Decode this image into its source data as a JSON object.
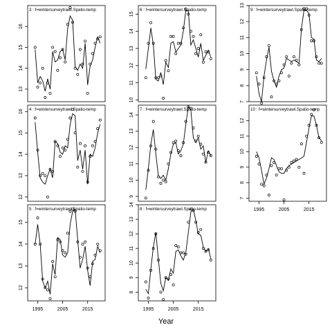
{
  "xlabel": "Year",
  "chart_data": [
    {
      "type": "line",
      "strip": "3 : f=wintersurveytrawl.Spatio-temp",
      "xlim": [
        1991,
        2022
      ],
      "ylim": [
        12.4,
        17.0
      ],
      "yticks": [
        13,
        14,
        15,
        16
      ],
      "xticks": [],
      "observed": {
        "x": [
          1994,
          1995,
          1996,
          1997,
          1998,
          1999,
          2000,
          2001,
          2002,
          2003,
          2004,
          2005,
          2006,
          2007,
          2008,
          2009,
          2010,
          2011,
          2012,
          2013,
          2014,
          2015,
          2016,
          2017,
          2018,
          2019,
          2020
        ],
        "y": [
          15.0,
          13.1,
          13.3,
          14.0,
          12.6,
          13.3,
          12.8,
          15.0,
          14.8,
          13.9,
          14.5,
          14.9,
          14.3,
          16.1,
          16.9,
          16.2,
          14.0,
          13.7,
          14.9,
          14.2,
          15.3,
          12.8,
          14.2,
          14.7,
          15.2,
          15.4,
          15.5
        ]
      },
      "fitted": {
        "x": [
          1994,
          1995,
          1996,
          1997,
          1998,
          1999,
          2000,
          2001,
          2002,
          2003,
          2004,
          2005,
          2006,
          2007,
          2008,
          2009,
          2010,
          2011,
          2012,
          2013,
          2014,
          2015,
          2016,
          2017,
          2018,
          2019,
          2020
        ],
        "y": [
          14.9,
          13.3,
          13.6,
          13.4,
          12.9,
          13.5,
          13.0,
          14.8,
          14.3,
          14.4,
          14.8,
          14.9,
          14.4,
          15.9,
          16.5,
          16.3,
          14.1,
          13.9,
          14.2,
          14.0,
          15.2,
          13.2,
          14.1,
          14.4,
          15.0,
          15.5,
          15.2
        ]
      }
    },
    {
      "type": "line",
      "strip": "4 : f=wintersurveytrawl.Spatio-temp",
      "xlim": [
        1991,
        2022
      ],
      "ylim": [
        11.8,
        16.3
      ],
      "yticks": [
        12,
        13,
        14,
        15,
        16
      ],
      "xticks": [],
      "observed": {
        "x": [
          1994,
          1995,
          1996,
          1997,
          1998,
          1999,
          2000,
          2001,
          2002,
          2003,
          2004,
          2005,
          2006,
          2007,
          2008,
          2009,
          2010,
          2011,
          2012,
          2013,
          2014,
          2015,
          2016,
          2017,
          2018,
          2019,
          2020
        ],
        "y": [
          15.7,
          14.2,
          13.0,
          13.1,
          13.0,
          12.0,
          13.3,
          13.2,
          14.6,
          14.4,
          13.9,
          14.3,
          14.2,
          14.7,
          15.7,
          16.1,
          15.0,
          13.4,
          14.5,
          13.2,
          14.4,
          12.7,
          13.9,
          14.4,
          14.6,
          15.2,
          15.6
        ]
      },
      "fitted": {
        "x": [
          1994,
          1995,
          1996,
          1997,
          1998,
          1999,
          2000,
          2001,
          2002,
          2003,
          2004,
          2005,
          2006,
          2007,
          2008,
          2009,
          2010,
          2011,
          2012,
          2013,
          2014,
          2015,
          2016,
          2017,
          2018,
          2019,
          2020
        ],
        "y": [
          15.5,
          14.1,
          12.9,
          12.7,
          12.6,
          13.0,
          13.3,
          12.9,
          14.6,
          14.5,
          14.1,
          14.0,
          14.4,
          14.3,
          15.4,
          15.9,
          15.8,
          13.7,
          14.2,
          13.3,
          14.2,
          12.6,
          14.0,
          13.9,
          14.3,
          15.0,
          15.4
        ]
      }
    },
    {
      "type": "line",
      "strip": "5 : f=wintersurveytrawl.Spatio-temp",
      "xlim": [
        1991,
        2022
      ],
      "ylim": [
        11.4,
        15.8
      ],
      "yticks": [
        12,
        13,
        14,
        15
      ],
      "xticks": [
        1995,
        2005,
        2015
      ],
      "observed": {
        "x": [
          1994,
          1995,
          1996,
          1997,
          1998,
          1999,
          2000,
          2001,
          2002,
          2003,
          2004,
          2005,
          2006,
          2007,
          2008,
          2009,
          2010,
          2011,
          2012,
          2013,
          2014,
          2015,
          2016,
          2017,
          2018,
          2019,
          2020
        ],
        "y": [
          14.0,
          15.2,
          14.0,
          12.4,
          12.0,
          11.9,
          11.5,
          13.2,
          12.5,
          14.2,
          14.1,
          13.7,
          13.6,
          14.5,
          15.5,
          15.6,
          15.5,
          14.1,
          13.4,
          14.0,
          14.1,
          12.9,
          12.5,
          13.1,
          13.5,
          14.0,
          13.7
        ]
      },
      "fitted": {
        "x": [
          1994,
          1995,
          1996,
          1997,
          1998,
          1999,
          2000,
          2001,
          2002,
          2003,
          2004,
          2005,
          2006,
          2007,
          2008,
          2009,
          2010,
          2011,
          2012,
          2013,
          2014,
          2015,
          2016,
          2017,
          2018,
          2019,
          2020
        ],
        "y": [
          14.0,
          14.9,
          14.0,
          12.3,
          12.0,
          12.3,
          11.7,
          13.1,
          12.6,
          14.3,
          14.2,
          13.5,
          13.4,
          13.6,
          14.9,
          15.5,
          15.6,
          14.2,
          12.9,
          13.3,
          13.9,
          12.8,
          12.1,
          13.2,
          13.3,
          13.9,
          13.6
        ]
      }
    },
    {
      "type": "line",
      "strip": "6 : f=wintersurveytrawl.Spatio-temp",
      "xlim": [
        1991,
        2022
      ],
      "ylim": [
        9.9,
        15.5
      ],
      "yticks": [
        10,
        11,
        12,
        13,
        14,
        15
      ],
      "xticks": [],
      "observed": {
        "x": [
          1994,
          1995,
          1996,
          1997,
          1998,
          1999,
          2000,
          2001,
          2002,
          2003,
          2004,
          2005,
          2006,
          2007,
          2008,
          2009,
          2010,
          2011,
          2012,
          2013,
          2014,
          2015,
          2016,
          2017,
          2018,
          2019,
          2020
        ],
        "y": [
          11.3,
          13.3,
          14.5,
          13.3,
          11.3,
          11.3,
          11.4,
          10.1,
          12.3,
          11.7,
          13.7,
          13.7,
          12.7,
          13.3,
          13.3,
          14.2,
          15.3,
          15.0,
          14.0,
          13.7,
          12.7,
          13.0,
          13.8,
          12.2,
          12.8,
          12.8,
          12.4
        ]
      },
      "fitted": {
        "x": [
          1994,
          1995,
          1996,
          1997,
          1998,
          1999,
          2000,
          2001,
          2002,
          2003,
          2004,
          2005,
          2006,
          2007,
          2008,
          2009,
          2010,
          2011,
          2012,
          2013,
          2014,
          2015,
          2016,
          2017,
          2018,
          2019,
          2020
        ],
        "y": [
          11.8,
          13.0,
          14.2,
          13.2,
          11.2,
          11.1,
          11.6,
          10.9,
          12.2,
          11.9,
          13.3,
          13.4,
          12.8,
          13.0,
          13.2,
          14.0,
          15.2,
          15.2,
          13.2,
          13.5,
          13.0,
          12.5,
          13.3,
          12.3,
          12.6,
          12.9,
          12.5
        ]
      }
    },
    {
      "type": "line",
      "strip": "7 : f=wintersurveytrawl.Spatio-temp",
      "xlim": [
        1991,
        2022
      ],
      "ylim": [
        8.7,
        14.6
      ],
      "yticks": [
        9,
        10,
        11,
        12,
        13,
        14
      ],
      "xticks": [],
      "observed": {
        "x": [
          1994,
          1995,
          1996,
          1997,
          1998,
          1999,
          2000,
          2001,
          2002,
          2003,
          2004,
          2005,
          2006,
          2007,
          2008,
          2009,
          2010,
          2011,
          2012,
          2013,
          2014,
          2015,
          2016,
          2017,
          2018,
          2019,
          2020
        ],
        "y": [
          8.9,
          10.6,
          12.1,
          13.6,
          11.9,
          10.2,
          9.8,
          10.0,
          9.9,
          11.0,
          11.7,
          12.3,
          12.4,
          11.8,
          11.5,
          12.3,
          13.6,
          14.5,
          14.4,
          13.2,
          12.4,
          12.7,
          12.2,
          11.6,
          11.1,
          11.7,
          11.5
        ]
      },
      "fitted": {
        "x": [
          1994,
          1995,
          1996,
          1997,
          1998,
          1999,
          2000,
          2001,
          2002,
          2003,
          2004,
          2005,
          2006,
          2007,
          2008,
          2009,
          2010,
          2011,
          2012,
          2013,
          2014,
          2015,
          2016,
          2017,
          2018,
          2019,
          2020
        ],
        "y": [
          9.4,
          10.7,
          12.2,
          13.1,
          11.6,
          10.3,
          10.1,
          10.3,
          10.0,
          10.7,
          11.6,
          12.2,
          12.3,
          11.6,
          11.8,
          12.2,
          13.4,
          14.5,
          14.3,
          12.6,
          12.3,
          12.6,
          11.9,
          12.1,
          11.1,
          11.8,
          11.5
        ]
      }
    },
    {
      "type": "line",
      "strip": "8 : f=wintersurveytrawl.Spatio-temp",
      "xlim": [
        1991,
        2022
      ],
      "ylim": [
        7.4,
        14.0
      ],
      "yticks": [
        8,
        9,
        10,
        11,
        12,
        13,
        14
      ],
      "xticks": [
        1995,
        2005,
        2015
      ],
      "observed": {
        "x": [
          1994,
          1995,
          1996,
          1997,
          1998,
          1999,
          2000,
          2001,
          2002,
          2003,
          2004,
          2005,
          2006,
          2007,
          2008,
          2009,
          2010,
          2011,
          2012,
          2013,
          2014,
          2015,
          2016,
          2017,
          2018,
          2019,
          2020
        ],
        "y": [
          8.7,
          7.6,
          9.5,
          11.0,
          12.0,
          10.2,
          8.0,
          7.5,
          9.0,
          8.9,
          9.2,
          8.5,
          11.2,
          11.1,
          10.7,
          10.7,
          10.6,
          12.8,
          13.7,
          13.6,
          12.8,
          12.1,
          12.3,
          11.0,
          10.8,
          10.9,
          10.2
        ]
      },
      "fitted": {
        "x": [
          1994,
          1995,
          1996,
          1997,
          1998,
          1999,
          2000,
          2001,
          2002,
          2003,
          2004,
          2005,
          2006,
          2007,
          2008,
          2009,
          2010,
          2011,
          2012,
          2013,
          2014,
          2015,
          2016,
          2017,
          2018,
          2019,
          2020
        ],
        "y": [
          8.2,
          7.9,
          9.6,
          11.1,
          12.1,
          10.3,
          8.6,
          8.1,
          9.0,
          8.8,
          9.6,
          9.3,
          10.8,
          10.9,
          10.5,
          10.2,
          10.7,
          12.1,
          13.5,
          13.7,
          12.9,
          12.0,
          11.9,
          11.1,
          10.8,
          11.0,
          10.3
        ]
      }
    },
    {
      "type": "line",
      "strip": "9 : f=wintersurveytrawl.Spatio-temp",
      "xlim": [
        1991,
        2022
      ],
      "ylim": [
        7.0,
        13.0
      ],
      "yticks": [
        7,
        8,
        9,
        10,
        11,
        12,
        13
      ],
      "xticks": [],
      "observed": {
        "x": [
          1994,
          1995,
          1996,
          1997,
          1998,
          1999,
          2000,
          2001,
          2002,
          2003,
          2004,
          2005,
          2006,
          2007,
          2008,
          2009,
          2010,
          2011,
          2012,
          2013,
          2014,
          2015,
          2016,
          2017,
          2018,
          2019,
          2020
        ],
        "y": [
          8.8,
          8.1,
          6.9,
          8.5,
          9.8,
          10.5,
          7.3,
          8.3,
          8.1,
          8.3,
          8.8,
          9.3,
          9.8,
          8.6,
          9.4,
          9.8,
          9.6,
          9.3,
          11.5,
          12.8,
          12.8,
          12.4,
          10.8,
          10.8,
          9.8,
          9.4,
          9.4
        ]
      },
      "fitted": {
        "x": [
          1994,
          1995,
          1996,
          1997,
          1998,
          1999,
          2000,
          2001,
          2002,
          2003,
          2004,
          2005,
          2006,
          2007,
          2008,
          2009,
          2010,
          2011,
          2012,
          2013,
          2014,
          2015,
          2016,
          2017,
          2018,
          2019,
          2020
        ],
        "y": [
          8.6,
          7.5,
          7.0,
          8.6,
          9.6,
          10.4,
          8.9,
          8.3,
          7.9,
          8.6,
          9.0,
          9.1,
          9.7,
          9.6,
          9.5,
          9.6,
          9.5,
          9.4,
          11.6,
          12.7,
          12.7,
          12.5,
          11.0,
          10.9,
          9.6,
          9.5,
          9.7
        ]
      }
    },
    {
      "type": "line",
      "strip": "10 : f=wintersurveytrawl.Spatio-temp",
      "xlim": [
        1991,
        2022
      ],
      "ylim": [
        6.8,
        13.0
      ],
      "yticks": [
        7,
        8,
        9,
        10,
        11,
        12
      ],
      "xticks": [
        1995,
        2005,
        2015
      ],
      "observed": {
        "x": [
          1994,
          1995,
          1996,
          1997,
          1998,
          1999,
          2000,
          2001,
          2002,
          2003,
          2004,
          2005,
          2006,
          2007,
          2008,
          2009,
          2010,
          2011,
          2012,
          2013,
          2014,
          2015,
          2016,
          2017,
          2018,
          2019,
          2020
        ],
        "y": [
          9.7,
          9.2,
          7.9,
          7.8,
          8.5,
          7.2,
          9.1,
          9.3,
          8.5,
          8.9,
          8.9,
          6.9,
          8.8,
          9.0,
          9.3,
          9.4,
          9.5,
          9.0,
          10.5,
          8.6,
          11.0,
          11.7,
          12.4,
          12.7,
          11.7,
          10.9,
          10.6
        ]
      },
      "fitted": {
        "x": [
          1994,
          1995,
          1996,
          1997,
          1998,
          1999,
          2000,
          2001,
          2002,
          2003,
          2004,
          2005,
          2006,
          2007,
          2008,
          2009,
          2010,
          2011,
          2012,
          2013,
          2014,
          2015,
          2016,
          2017,
          2018,
          2019,
          2020
        ],
        "y": [
          10.0,
          9.6,
          8.8,
          7.9,
          8.3,
          8.9,
          9.6,
          9.5,
          9.1,
          8.7,
          8.6,
          8.6,
          8.9,
          9.1,
          9.2,
          9.3,
          9.4,
          9.5,
          9.6,
          9.7,
          10.6,
          11.5,
          12.3,
          12.3,
          11.7,
          10.9,
          10.7
        ]
      }
    }
  ]
}
